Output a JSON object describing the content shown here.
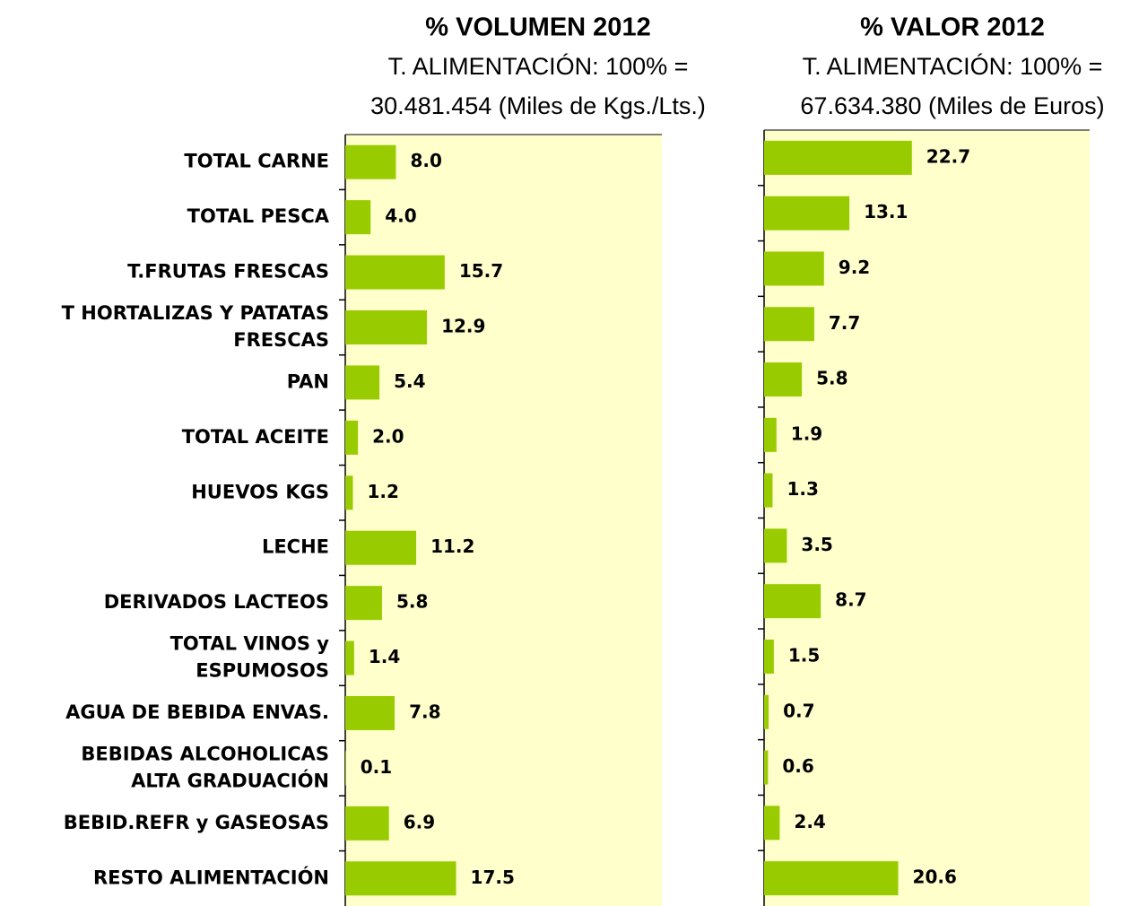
{
  "chart_data": [
    {
      "type": "bar",
      "orientation": "horizontal",
      "title": "% VOLUMEN 2012",
      "subtitle": [
        "T. ALIMENTACIÓN: 100% =",
        "30.481.454 (Miles de Kgs./Lts.)"
      ],
      "categories": [
        "TOTAL CARNE",
        "TOTAL PESCA",
        "T.FRUTAS FRESCAS",
        "T HORTALIZAS Y PATATAS\nFRESCAS",
        "PAN",
        "TOTAL ACEITE",
        "HUEVOS KGS",
        "LECHE",
        "DERIVADOS LACTEOS",
        "TOTAL VINOS y\nESPUMOSOS",
        "AGUA DE BEBIDA ENVAS.",
        "BEBIDAS ALCOHOLICAS\nALTA GRADUACIÓN",
        "BEBID.REFR y GASEOSAS",
        "RESTO ALIMENTACIÓN"
      ],
      "values": [
        8,
        4,
        15.7,
        12.9,
        5.4,
        2,
        1.2,
        11.2,
        5.8,
        1.4,
        7.8,
        0.1,
        6.9,
        17.5
      ],
      "value_labels": [
        "8.0",
        "4.0",
        "15.7",
        "12.9",
        "5.4",
        "2.0",
        "1.2",
        "11.2",
        "5.8",
        "1.4",
        "7.8",
        "0.1",
        "6.9",
        "17.5"
      ],
      "color": "#99cc00",
      "background": "#ffffcc",
      "xlim": [
        0,
        50
      ]
    },
    {
      "type": "bar",
      "orientation": "horizontal",
      "title": "% VALOR 2012",
      "subtitle": [
        "T. ALIMENTACIÓN: 100% =",
        "67.634.380 (Miles de Euros)"
      ],
      "values": [
        22.7,
        13.1,
        9.2,
        7.7,
        5.8,
        1.9,
        1.3,
        3.5,
        8.7,
        1.5,
        0.7,
        0.6,
        2.4,
        20.6
      ],
      "value_labels": [
        "22.7",
        "13.1",
        "9.2",
        "7.7",
        "5.8",
        "1.9",
        "1.3",
        "3.5",
        "8.7",
        "1.5",
        "0.7",
        "0.6",
        "2.4",
        "20.6"
      ],
      "color": "#99cc00",
      "background": "#ffffcc",
      "xlim": [
        0,
        50
      ]
    }
  ]
}
